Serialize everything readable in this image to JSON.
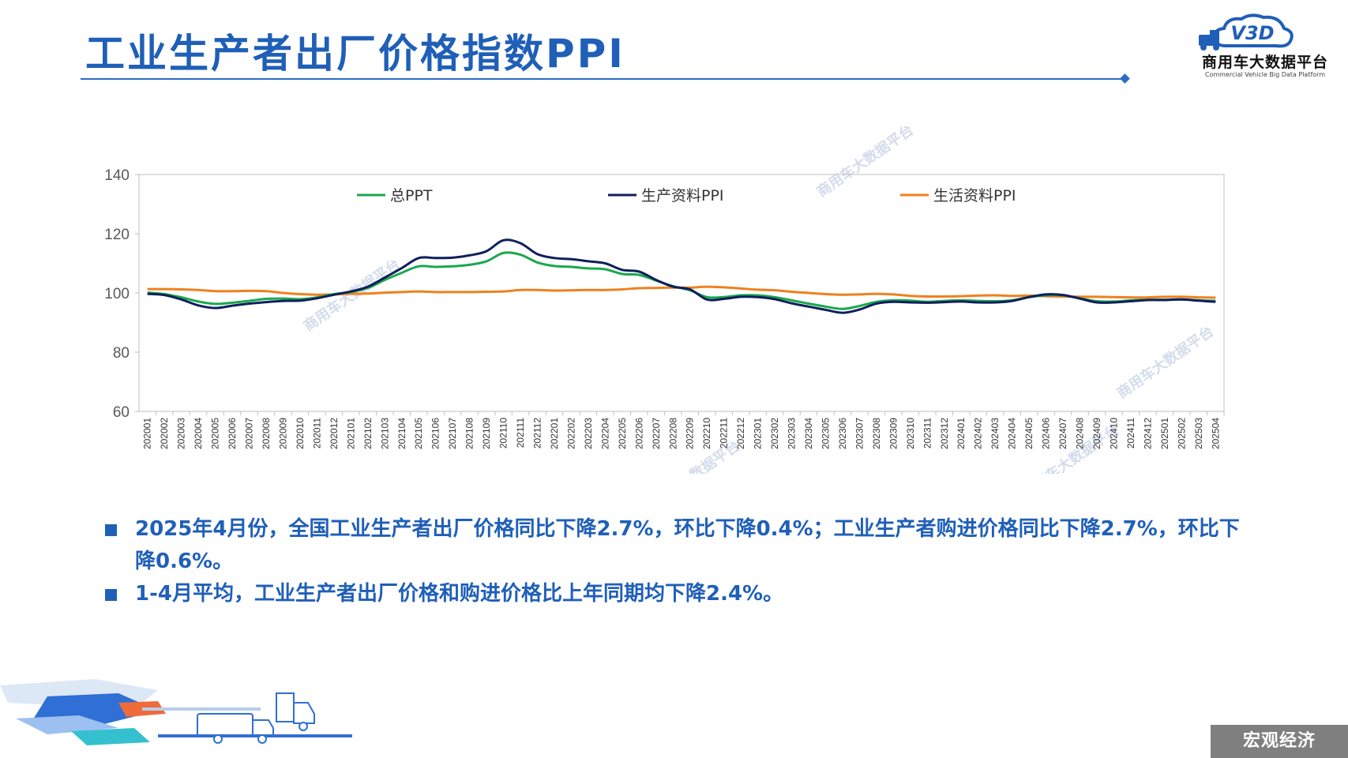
{
  "title": "工业生产者出厂价格指数PPI",
  "logo": {
    "mark": "V3D",
    "name": "商用车大数据平台",
    "subtitle": "Commercial Vehicle Big Data Platform"
  },
  "watermark": "商用车大数据平台",
  "chart_data": {
    "type": "line",
    "title": "",
    "xlabel": "",
    "ylabel": "",
    "ylim": [
      60,
      140
    ],
    "yticks": [
      60,
      80,
      100,
      120,
      140
    ],
    "grid": false,
    "legend_position": "top",
    "x": [
      "202001",
      "202002",
      "202003",
      "202004",
      "202005",
      "202006",
      "202007",
      "202008",
      "202009",
      "202010",
      "202011",
      "202012",
      "202101",
      "202102",
      "202103",
      "202104",
      "202105",
      "202106",
      "202107",
      "202108",
      "202109",
      "202110",
      "202111",
      "202112",
      "202201",
      "202202",
      "202203",
      "202204",
      "202205",
      "202206",
      "202207",
      "202208",
      "202209",
      "202210",
      "202211",
      "202212",
      "202301",
      "202302",
      "202303",
      "202304",
      "202305",
      "202306",
      "202307",
      "202308",
      "202309",
      "202310",
      "202311",
      "202312",
      "202401",
      "202402",
      "202403",
      "202404",
      "202405",
      "202406",
      "202407",
      "202408",
      "202409",
      "202410",
      "202411",
      "202412",
      "202501",
      "202502",
      "202503",
      "202504"
    ],
    "series": [
      {
        "name": "总PPT",
        "color": "#1aa84e",
        "values": [
          100.1,
          99.6,
          98.5,
          97.1,
          96.3,
          96.7,
          97.3,
          98.0,
          98.1,
          97.9,
          98.5,
          99.6,
          100.3,
          101.7,
          104.4,
          106.8,
          109.0,
          108.8,
          109.0,
          109.5,
          110.7,
          113.5,
          112.9,
          110.3,
          109.1,
          108.8,
          108.3,
          108.0,
          106.4,
          106.1,
          104.2,
          102.3,
          100.9,
          98.6,
          98.6,
          99.2,
          99.2,
          98.6,
          97.5,
          96.4,
          95.4,
          94.6,
          95.6,
          97.0,
          97.5,
          97.4,
          97.0,
          97.3,
          97.5,
          97.3,
          97.2,
          97.5,
          98.6,
          99.2,
          99.2,
          98.2,
          97.2,
          97.1,
          97.5,
          97.7,
          97.7,
          97.8,
          97.5,
          97.3
        ]
      },
      {
        "name": "生产资料PPI",
        "color": "#0f1f5c",
        "values": [
          99.7,
          99.3,
          97.8,
          95.8,
          94.9,
          95.7,
          96.4,
          96.9,
          97.3,
          97.4,
          98.2,
          99.4,
          100.5,
          102.1,
          105.2,
          108.4,
          111.8,
          111.8,
          111.9,
          112.7,
          114.1,
          117.8,
          116.8,
          113.1,
          111.8,
          111.4,
          110.7,
          110.0,
          107.8,
          107.2,
          104.4,
          102.1,
          101.2,
          97.8,
          98.0,
          98.7,
          98.6,
          97.9,
          96.5,
          95.4,
          94.3,
          93.3,
          94.4,
          96.4,
          97.0,
          96.8,
          96.7,
          96.9,
          97.1,
          96.8,
          96.8,
          97.3,
          98.6,
          99.5,
          99.3,
          98.1,
          96.8,
          96.8,
          97.2,
          97.6,
          97.6,
          97.8,
          97.4,
          97.0
        ]
      },
      {
        "name": "生活资料PPI",
        "color": "#f0801f",
        "values": [
          101.3,
          101.3,
          101.2,
          101.0,
          100.6,
          100.6,
          100.7,
          100.6,
          100.0,
          99.6,
          99.4,
          99.5,
          99.7,
          99.8,
          100.1,
          100.3,
          100.5,
          100.3,
          100.3,
          100.3,
          100.4,
          100.5,
          101.0,
          101.0,
          100.8,
          100.9,
          101.0,
          101.0,
          101.2,
          101.6,
          101.7,
          101.8,
          101.8,
          102.1,
          101.9,
          101.5,
          101.1,
          100.9,
          100.4,
          100.0,
          99.6,
          99.4,
          99.5,
          99.7,
          99.5,
          99.0,
          98.8,
          98.8,
          98.9,
          99.1,
          99.2,
          99.0,
          99.1,
          98.9,
          98.8,
          98.7,
          98.7,
          98.6,
          98.5,
          98.5,
          98.7,
          98.7,
          98.5,
          98.4
        ]
      }
    ]
  },
  "bullets": [
    "2025年4月份，全国工业生产者出厂价格同比下降2.7%，环比下降0.4%；工业生产者购进价格同比下降2.7%，环比下降0.6%。",
    "1-4月平均，工业生产者出厂价格和购进价格比上年同期均下降2.4%。"
  ],
  "section_tag": "宏观经济"
}
